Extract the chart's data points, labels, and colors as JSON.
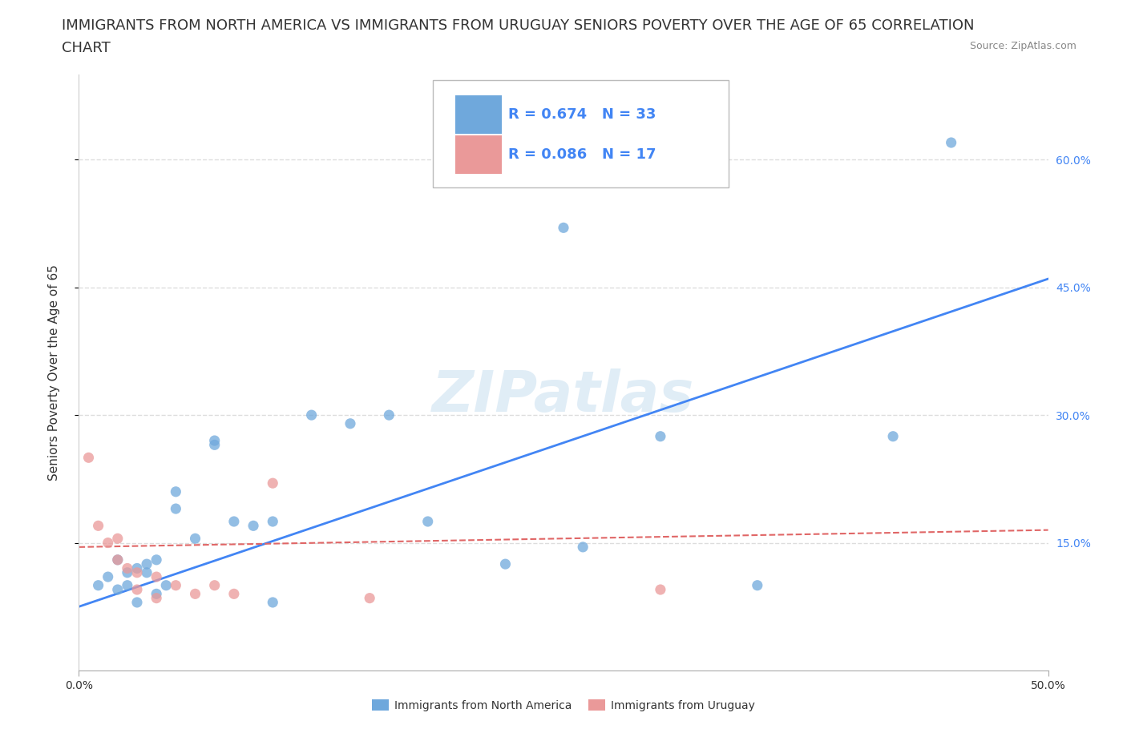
{
  "title_line1": "IMMIGRANTS FROM NORTH AMERICA VS IMMIGRANTS FROM URUGUAY SENIORS POVERTY OVER THE AGE OF 65 CORRELATION",
  "title_line2": "CHART",
  "source": "Source: ZipAtlas.com",
  "ylabel": "Seniors Poverty Over the Age of 65",
  "xmin": 0.0,
  "xmax": 0.5,
  "ymin": 0.0,
  "ymax": 0.7,
  "xtick_labels": [
    "0.0%",
    "50.0%"
  ],
  "ytick_labels_right": [
    "15.0%",
    "30.0%",
    "45.0%",
    "60.0%"
  ],
  "ytick_values": [
    0.15,
    0.3,
    0.45,
    0.6
  ],
  "R_blue": 0.674,
  "N_blue": 33,
  "R_pink": 0.086,
  "N_pink": 17,
  "blue_color": "#6fa8dc",
  "pink_color": "#ea9999",
  "blue_line_color": "#4285f4",
  "pink_line_color": "#e06666",
  "tick_label_color": "#4285f4",
  "watermark": "ZIPatlas",
  "blue_scatter_x": [
    0.01,
    0.015,
    0.02,
    0.02,
    0.025,
    0.025,
    0.03,
    0.03,
    0.035,
    0.035,
    0.04,
    0.04,
    0.045,
    0.05,
    0.05,
    0.06,
    0.07,
    0.07,
    0.08,
    0.09,
    0.1,
    0.1,
    0.12,
    0.14,
    0.16,
    0.18,
    0.22,
    0.25,
    0.26,
    0.3,
    0.35,
    0.42,
    0.45
  ],
  "blue_scatter_y": [
    0.1,
    0.11,
    0.095,
    0.13,
    0.1,
    0.115,
    0.12,
    0.08,
    0.115,
    0.125,
    0.13,
    0.09,
    0.1,
    0.21,
    0.19,
    0.155,
    0.265,
    0.27,
    0.175,
    0.17,
    0.175,
    0.08,
    0.3,
    0.29,
    0.3,
    0.175,
    0.125,
    0.52,
    0.145,
    0.275,
    0.1,
    0.275,
    0.62
  ],
  "pink_scatter_x": [
    0.005,
    0.01,
    0.015,
    0.02,
    0.02,
    0.025,
    0.03,
    0.03,
    0.04,
    0.04,
    0.05,
    0.06,
    0.07,
    0.08,
    0.1,
    0.15,
    0.3
  ],
  "pink_scatter_y": [
    0.25,
    0.17,
    0.15,
    0.13,
    0.155,
    0.12,
    0.095,
    0.115,
    0.11,
    0.085,
    0.1,
    0.09,
    0.1,
    0.09,
    0.22,
    0.085,
    0.095
  ],
  "blue_trend_x": [
    0.0,
    0.5
  ],
  "blue_trend_y": [
    0.075,
    0.46
  ],
  "pink_trend_x": [
    0.0,
    0.5
  ],
  "pink_trend_y": [
    0.145,
    0.165
  ],
  "background_color": "#ffffff",
  "grid_color": "#dddddd",
  "title_fontsize": 13,
  "axis_label_fontsize": 11,
  "tick_fontsize": 10,
  "legend_fontsize": 13
}
